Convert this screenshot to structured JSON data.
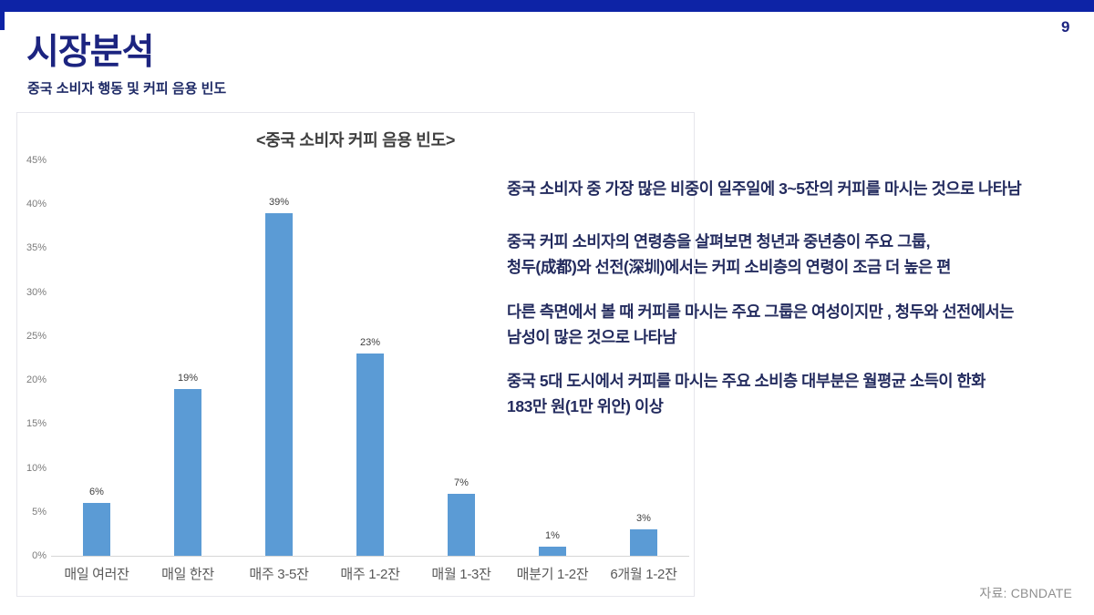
{
  "page": {
    "number": "9",
    "title": "시장분석",
    "subtitle": "중국 소비자 행동 및 커피 음용 빈도",
    "source": "자료: CBNDATE"
  },
  "colors": {
    "accent_bar": "#0d23a6",
    "title_text": "#1c2480",
    "subtitle_text": "#1e2a66",
    "notes_text": "#232b5e",
    "bar_fill": "#5b9bd5"
  },
  "chart_data": {
    "type": "bar",
    "title": "<중국 소비자 커피 음용 빈도>",
    "categories": [
      "매일 여러잔",
      "매일 한잔",
      "매주 3-5잔",
      "매주 1-2잔",
      "매월 1-3잔",
      "매분기 1-2잔",
      "6개월 1-2잔"
    ],
    "values": [
      6,
      19,
      39,
      23,
      7,
      1,
      3
    ],
    "value_labels": [
      "6%",
      "19%",
      "39%",
      "23%",
      "7%",
      "1%",
      "3%"
    ],
    "ytick_labels": [
      "0%",
      "5%",
      "10%",
      "15%",
      "20%",
      "25%",
      "30%",
      "35%",
      "40%",
      "45%"
    ],
    "ylim": [
      0,
      45
    ],
    "ytick_step": 5,
    "xlabel": "",
    "ylabel": "",
    "grid": false,
    "legend": false,
    "bar_color": "#5b9bd5"
  },
  "notes": [
    {
      "lines": [
        "중국 소비자 중 가장 많은 비중이 일주일에 3~5잔의 커피를 마시는 것으로 나타남"
      ]
    },
    {
      "lines": [
        " 중국 커피 소비자의 연령층을 살펴보면 청년과 중년층이 주요 그룹,",
        "청두(成都)와 선전(深圳)에서는 커피 소비층의 연령이 조금 더 높은 편"
      ]
    },
    {
      "lines": [
        " 다른 측면에서 볼 때 커피를 마시는 주요 그룹은 여성이지만 , 청두와 선전에서는",
        "남성이 많은 것으로 나타남"
      ]
    },
    {
      "lines": [
        " 중국 5대 도시에서 커피를 마시는 주요 소비층 대부분은 월평균 소득이 한화",
        "183만 원(1만 위안) 이상"
      ]
    }
  ]
}
